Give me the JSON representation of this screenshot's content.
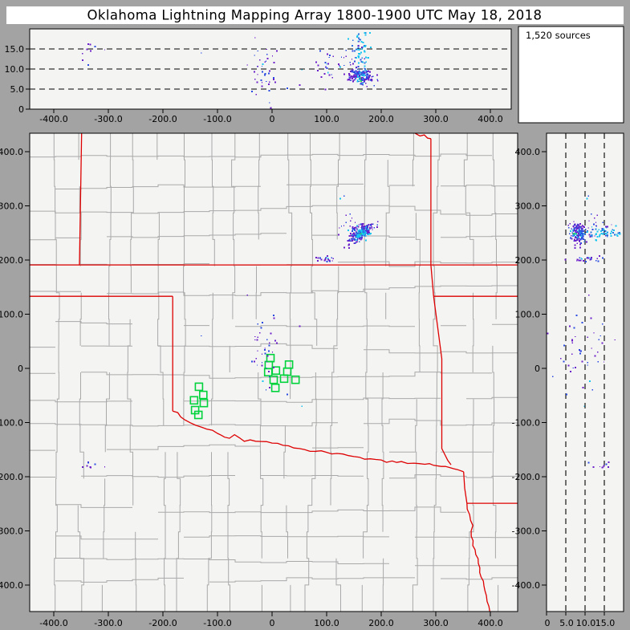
{
  "window": {
    "title": "Oklahoma Lightning Mapping Array   1800-1900 UTC  May 18, 2018",
    "frame_color": "#a3a3a3",
    "titlebar_bg": "#ffffff"
  },
  "annotation_panel": {
    "label": "1,520 sources",
    "bg": "#ffffff"
  },
  "style": {
    "panel_bg": "#f4f4f3",
    "county_line": "#a9a9a9",
    "state_border": "#de0000",
    "axis_color": "#000000",
    "station_color": "#00d23c",
    "point_colors": {
      "purple": "#6a1fc8",
      "blue": "#2b4ae0",
      "blue2": "#2b72e0",
      "cyan": "#18c5ee",
      "green": "#2ee04a"
    }
  },
  "top_panel": {
    "y_ticks": [
      {
        "label": "15.0",
        "km": 15
      },
      {
        "label": "10.0",
        "km": 10
      },
      {
        "label": "5.0",
        "km": 5
      },
      {
        "label": "0",
        "km": 0
      }
    ],
    "x_ticks": [
      {
        "label": "-400.0",
        "km": -400
      },
      {
        "label": "-300.0",
        "km": -300
      },
      {
        "label": "-200.0",
        "km": -200
      },
      {
        "label": "-100.0",
        "km": -100
      },
      {
        "label": "0",
        "km": 0
      },
      {
        "label": "100.0",
        "km": 100
      },
      {
        "label": "200.0",
        "km": 200
      },
      {
        "label": "300.0",
        "km": 300
      },
      {
        "label": "400.0",
        "km": 400
      }
    ],
    "dashed_altitudes_km": [
      5,
      10,
      15
    ],
    "altitude_range_km": [
      0,
      20
    ]
  },
  "main_map": {
    "x_ticks": [
      {
        "label": "-400.0",
        "km": -400
      },
      {
        "label": "-300.0",
        "km": -300
      },
      {
        "label": "-200.0",
        "km": -200
      },
      {
        "label": "-100.0",
        "km": -100
      },
      {
        "label": "0",
        "km": 0
      },
      {
        "label": "100.0",
        "km": 100
      },
      {
        "label": "200.0",
        "km": 200
      },
      {
        "label": "300.0",
        "km": 300
      },
      {
        "label": "400.0",
        "km": 400
      }
    ],
    "y_ticks": [
      {
        "label": "400.0",
        "km": 400
      },
      {
        "label": "300.0",
        "km": 300
      },
      {
        "label": "200.0",
        "km": 200
      },
      {
        "label": "100.0",
        "km": 100
      },
      {
        "label": "0",
        "km": 0
      },
      {
        "label": "-100.0",
        "km": -100
      },
      {
        "label": "-200.0",
        "km": -200
      },
      {
        "label": "-300.0",
        "km": -300
      },
      {
        "label": "-400.0",
        "km": -400
      }
    ],
    "x_range_km": [
      -444,
      450
    ],
    "y_range_km": [
      -449,
      434
    ]
  },
  "right_panel": {
    "x_ticks": [
      {
        "label": "0",
        "km": 0
      },
      {
        "label": "5.0",
        "km": 5
      },
      {
        "label": "10.0",
        "km": 10
      },
      {
        "label": "15.0",
        "km": 15
      }
    ],
    "y_ticks": [
      {
        "label": "400.0",
        "km": 400
      },
      {
        "label": "300.0",
        "km": 300
      },
      {
        "label": "200.0",
        "km": 200
      },
      {
        "label": "100.0",
        "km": 100
      },
      {
        "label": "0",
        "km": 0
      },
      {
        "label": "-100.0",
        "km": -100
      },
      {
        "label": "-200.0",
        "km": -200
      },
      {
        "label": "-300.0",
        "km": -300
      },
      {
        "label": "-400.0",
        "km": -400
      }
    ],
    "dashed_altitudes_km": [
      5,
      10,
      15
    ],
    "altitude_range_km": [
      0,
      20
    ]
  },
  "chart_data": {
    "type": "scatter",
    "description": "VHF lightning source locations: plan view (east-west vs north-south km), altitude vs east-west (top strip), altitude vs north-south (right strip)",
    "sources_count": 1520,
    "stations_km": [
      [
        -3,
        19
      ],
      [
        -6,
        6
      ],
      [
        31,
        7
      ],
      [
        -7,
        -7
      ],
      [
        7,
        -4
      ],
      [
        28,
        -6
      ],
      [
        3,
        -21
      ],
      [
        22,
        -19
      ],
      [
        43,
        -21
      ],
      [
        6,
        -36
      ],
      [
        -134,
        -34
      ],
      [
        -126,
        -49
      ],
      [
        -143,
        -59
      ],
      [
        -125,
        -64
      ],
      [
        -141,
        -77
      ],
      [
        -135,
        -86
      ]
    ],
    "clusters": [
      {
        "name": "kansas-storm-core",
        "n": 170,
        "center_km": [
          162,
          249,
          8.2
        ],
        "axis_deg": 38,
        "spread_km": [
          13,
          4.5,
          0.9
        ],
        "palette": "radial"
      },
      {
        "name": "kansas-storm-anvil",
        "n": 55,
        "center_km": [
          165,
          250,
          14.5
        ],
        "axis_deg": 0,
        "spread_km": [
          7,
          5,
          2.6
        ],
        "palette": {
          "cyan": 0.55,
          "blue2": 0.45
        }
      },
      {
        "name": "kansas-storm-debris",
        "n": 26,
        "center_km": [
          148,
          263,
          12
        ],
        "axis_deg": 0,
        "spread_km": [
          14,
          11,
          2.2
        ],
        "palette": {
          "purple": 0.7,
          "blue": 0.3
        }
      },
      {
        "name": "kansas-border-cluster",
        "n": 22,
        "center_km": [
          100,
          202,
          10
        ],
        "axis_deg": 0,
        "spread_km": [
          9,
          2.5,
          2.8
        ],
        "palette": {
          "purple": 0.55,
          "blue": 0.35,
          "cyan": 0.1
        }
      },
      {
        "name": "central-oklahoma",
        "n": 38,
        "center_km": [
          -12,
          35,
          9
        ],
        "axis_deg": 0,
        "spread_km": [
          13,
          34,
          3.8
        ],
        "palette": {
          "purple": 0.65,
          "blue": 0.3,
          "cyan": 0.05
        }
      },
      {
        "name": "west-texas-panhandle",
        "n": 9,
        "center_km": [
          -335,
          -179,
          14
        ],
        "axis_deg": 0,
        "spread_km": [
          7,
          3.5,
          1.3
        ],
        "palette": {
          "purple": 0.7,
          "blue": 0.3
        }
      }
    ],
    "stray_points": [
      [
        -130,
        60,
        14,
        "blue"
      ],
      [
        51,
        78,
        6,
        "purple"
      ],
      [
        -45,
        135,
        11,
        "purple"
      ],
      [
        125,
        313,
        10.5,
        "cyan"
      ],
      [
        132,
        318,
        10.9,
        "blue"
      ],
      [
        -5,
        -15,
        1.6,
        "blue"
      ],
      [
        28,
        -48,
        5.2,
        "blue"
      ],
      [
        55,
        -70,
        9.8,
        "cyan"
      ],
      [
        140,
        255,
        17.5,
        "cyan"
      ],
      [
        170,
        248,
        19,
        "cyan"
      ]
    ],
    "state_borders_km": {
      "kansas-south-37N": [
        [
          -444,
          191
        ],
        [
          450,
          191
        ]
      ],
      "colorado-kansas": [
        [
          -349,
          434
        ],
        [
          -353,
          191
        ]
      ],
      "texas-panhandle-north-36p5N": [
        [
          -444,
          133
        ],
        [
          -182,
          133
        ]
      ],
      "oklahoma-west-100W": [
        [
          -182,
          133
        ],
        [
          -182,
          -79
        ]
      ],
      "missouri-kansas-river": [
        [
          262,
          434
        ],
        [
          271,
          429
        ],
        [
          279,
          431
        ],
        [
          285,
          425
        ],
        [
          291,
          424
        ]
      ],
      "missouri-kansas": [
        [
          291,
          424
        ],
        [
          291,
          191
        ]
      ],
      "oklahoma-missouri": [
        [
          291,
          191
        ],
        [
          296,
          133
        ]
      ],
      "missouri-arkansas-36p5N": [
        [
          296,
          133
        ],
        [
          450,
          133
        ]
      ],
      "oklahoma-arkansas": [
        [
          296,
          133
        ],
        [
          311,
          18
        ],
        [
          311,
          -148
        ],
        [
          322,
          -170
        ],
        [
          328,
          -178
        ]
      ],
      "red-river": [
        [
          -182,
          -79
        ],
        [
          -160,
          -95
        ],
        [
          -140,
          -105
        ],
        [
          -120,
          -112
        ],
        [
          -100,
          -120
        ],
        [
          -87,
          -127
        ],
        [
          -60,
          -128
        ],
        [
          -40,
          -132
        ],
        [
          -20,
          -135
        ],
        [
          0,
          -138
        ],
        [
          20,
          -142
        ],
        [
          40,
          -147
        ],
        [
          60,
          -150
        ],
        [
          80,
          -153
        ],
        [
          100,
          -155
        ],
        [
          119,
          -157
        ],
        [
          140,
          -161
        ],
        [
          160,
          -164
        ],
        [
          180,
          -167
        ],
        [
          200,
          -169
        ],
        [
          220,
          -171
        ],
        [
          237,
          -172
        ],
        [
          260,
          -175
        ],
        [
          280,
          -177
        ],
        [
          296,
          -179
        ],
        [
          310,
          -181
        ],
        [
          325,
          -183
        ],
        [
          340,
          -187
        ],
        [
          351,
          -191
        ]
      ],
      "texas-arkansas": [
        [
          351,
          -191
        ],
        [
          353,
          -221
        ],
        [
          357,
          -249
        ]
      ],
      "arkansas-louisiana-33N": [
        [
          357,
          -249
        ],
        [
          450,
          -249
        ]
      ],
      "texas-louisiana": [
        [
          357,
          -249
        ],
        [
          362,
          -270
        ],
        [
          368,
          -290
        ],
        [
          365,
          -310
        ],
        [
          372,
          -335
        ],
        [
          378,
          -360
        ],
        [
          383,
          -385
        ],
        [
          390,
          -410
        ],
        [
          394,
          -430
        ],
        [
          399,
          -449
        ]
      ]
    }
  }
}
